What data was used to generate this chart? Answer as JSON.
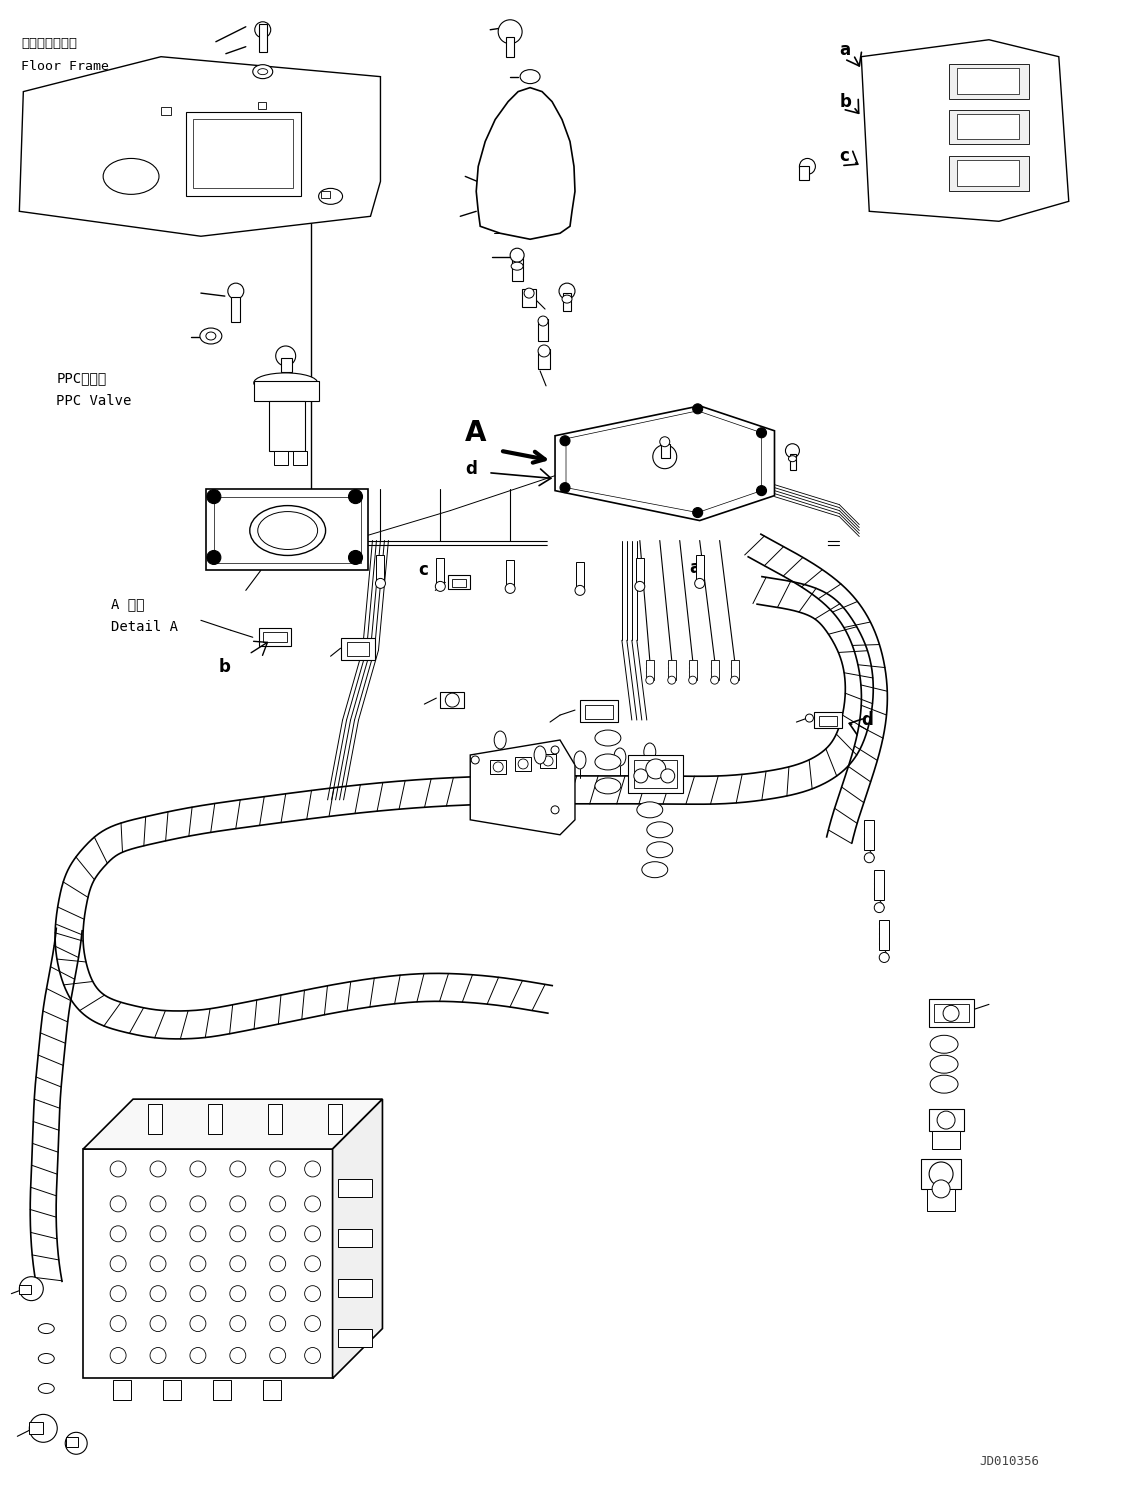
{
  "bg_color": "#ffffff",
  "lc": "#000000",
  "fig_width": 11.35,
  "fig_height": 14.92,
  "dpi": 100,
  "watermark": "JD010356",
  "labels": {
    "floor_frame_jp": "フロアフレーム",
    "floor_frame_en": "Floor Frame",
    "ppc_valve_jp": "PPCバルブ",
    "ppc_valve_en": "PPC Valve",
    "detail_a_jp": "A 詳細",
    "detail_a_en": "Detail A",
    "label_A": "A",
    "label_a": "a",
    "label_b": "b",
    "label_c": "c",
    "label_d": "d"
  }
}
